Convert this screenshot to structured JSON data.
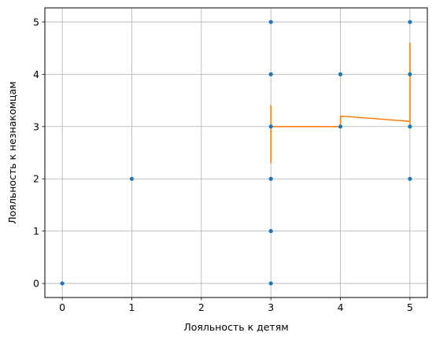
{
  "chart_data": {
    "type": "scatter",
    "title": "",
    "xlabel": "Лояльность к детям",
    "ylabel": "Лояльность к незнакомцам",
    "xlim": [
      -0.25,
      5.25
    ],
    "ylim": [
      -0.27,
      5.27
    ],
    "xticks": [
      0,
      1,
      2,
      3,
      4,
      5
    ],
    "yticks": [
      0,
      1,
      2,
      3,
      4,
      5
    ],
    "grid": true,
    "legend": "none",
    "colors": {
      "points": "#1f77b4",
      "line": "#ff7f0e",
      "grid": "#b0b0b0"
    },
    "series": [
      {
        "kind": "scatter",
        "points": [
          [
            0,
            0
          ],
          [
            1,
            2
          ],
          [
            3,
            0
          ],
          [
            3,
            1
          ],
          [
            3,
            2
          ],
          [
            3,
            3
          ],
          [
            3,
            4
          ],
          [
            3,
            5
          ],
          [
            4,
            3
          ],
          [
            4,
            4
          ],
          [
            5,
            2
          ],
          [
            5,
            3
          ],
          [
            5,
            4
          ],
          [
            5,
            5
          ]
        ]
      },
      {
        "kind": "line",
        "points": [
          [
            3,
            2.3
          ],
          [
            3,
            3.4
          ],
          [
            3,
            3.0
          ],
          [
            4,
            3.0
          ],
          [
            4,
            3.2
          ],
          [
            5,
            3.1
          ],
          [
            5,
            4.6
          ],
          [
            5,
            3.0
          ]
        ]
      }
    ]
  }
}
